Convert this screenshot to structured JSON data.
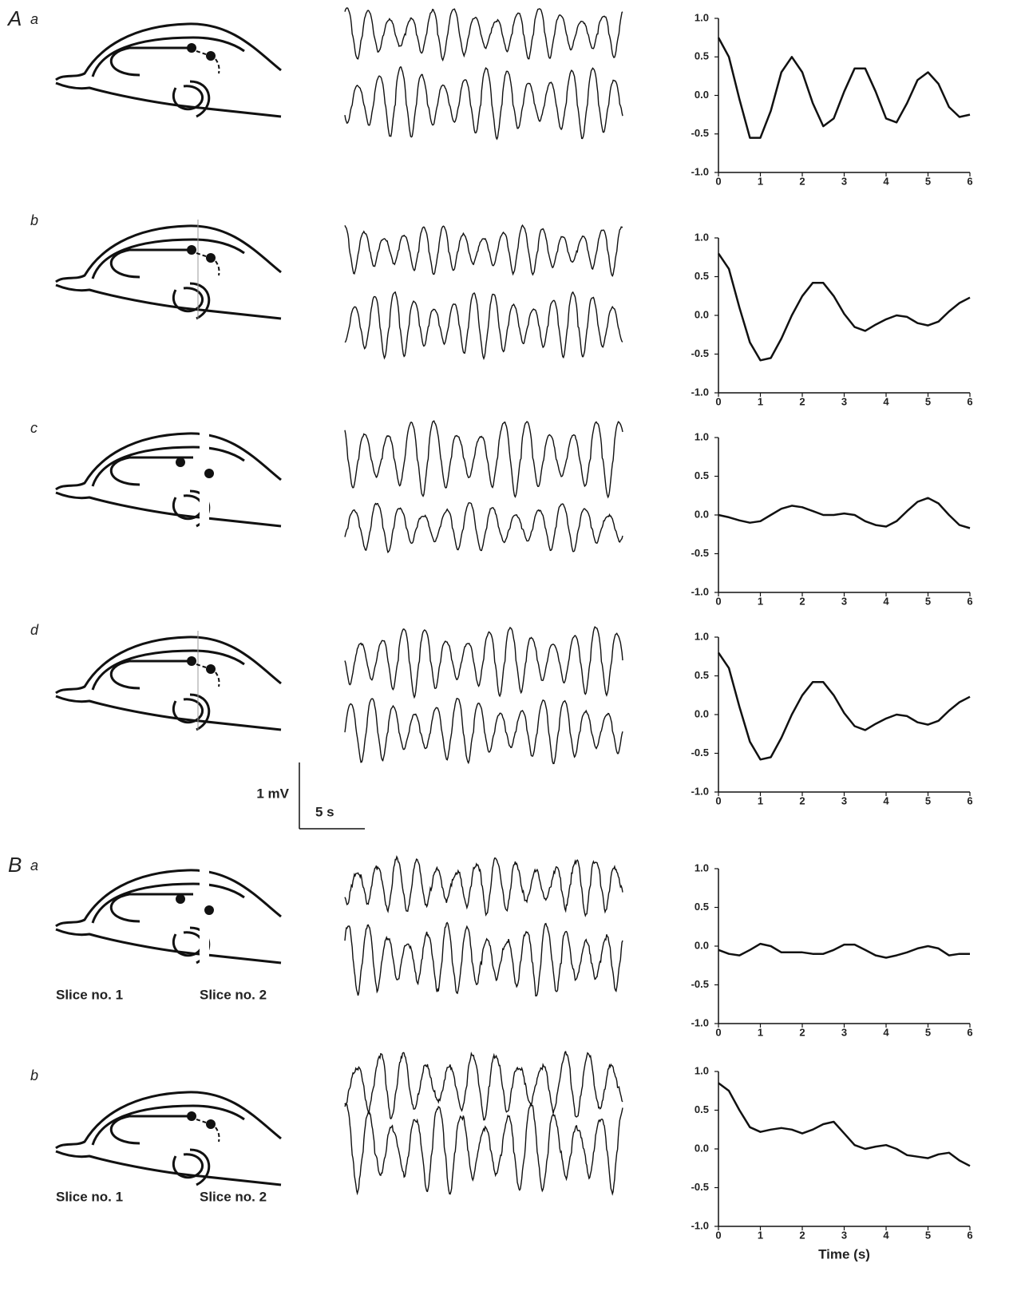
{
  "panels": [
    {
      "group": "A",
      "label": "a"
    },
    {
      "label": "b"
    },
    {
      "label": "c"
    },
    {
      "label": "d"
    },
    {
      "group": "B",
      "label": "a"
    },
    {
      "label": "b"
    }
  ],
  "scale_bar": {
    "voltage": "1 mV",
    "time": "5 s"
  },
  "slice_labels": [
    [
      "Slice no. 1",
      "Slice no. 2"
    ],
    [
      "Slice no. 1",
      "Slice no. 2"
    ]
  ],
  "chart_data": [
    {
      "type": "line",
      "color": "#111111",
      "x": [
        0,
        0.25,
        0.5,
        0.75,
        1,
        1.25,
        1.5,
        1.75,
        2,
        2.25,
        2.5,
        2.75,
        3,
        3.25,
        3.5,
        3.75,
        4,
        4.25,
        4.5,
        4.75,
        5,
        5.25,
        5.5,
        5.75,
        6
      ],
      "values": [
        0.75,
        0.5,
        -0.05,
        -0.55,
        -0.55,
        -0.2,
        0.3,
        0.5,
        0.3,
        -0.1,
        -0.4,
        -0.3,
        0.05,
        0.35,
        0.35,
        0.05,
        -0.3,
        -0.35,
        -0.1,
        0.2,
        0.3,
        0.15,
        -0.15,
        -0.28,
        -0.25
      ],
      "xlim": [
        0,
        6
      ],
      "xticks": [
        0,
        1,
        2,
        3,
        4,
        5,
        6
      ],
      "ylim": [
        -1,
        1
      ],
      "yticks": [
        {
          "value": -1,
          "label": "-1.0"
        },
        {
          "value": -0.5,
          "label": "-0.5"
        },
        {
          "value": 0,
          "label": "0.0"
        },
        {
          "value": 0.5,
          "label": "0.5"
        },
        {
          "value": 1,
          "label": "1.0"
        }
      ]
    },
    {
      "type": "line",
      "color": "#111111",
      "x": [
        0,
        0.25,
        0.5,
        0.75,
        1,
        1.25,
        1.5,
        1.75,
        2,
        2.25,
        2.5,
        2.75,
        3,
        3.25,
        3.5,
        3.75,
        4,
        4.25,
        4.5,
        4.75,
        5,
        5.25,
        5.5,
        5.75,
        6
      ],
      "values": [
        0.8,
        0.6,
        0.1,
        -0.35,
        -0.58,
        -0.55,
        -0.3,
        0.0,
        0.25,
        0.42,
        0.42,
        0.25,
        0.02,
        -0.15,
        -0.2,
        -0.12,
        -0.05,
        0.0,
        -0.02,
        -0.1,
        -0.13,
        -0.08,
        0.05,
        0.16,
        0.23
      ],
      "xlim": [
        0,
        6
      ],
      "xticks": [
        0,
        1,
        2,
        3,
        4,
        5,
        6
      ],
      "ylim": [
        -1,
        1
      ],
      "yticks": [
        {
          "value": -1,
          "label": "-1.0"
        },
        {
          "value": -0.5,
          "label": "-0.5"
        },
        {
          "value": 0,
          "label": "0.0"
        },
        {
          "value": 0.5,
          "label": "0.5"
        },
        {
          "value": 1,
          "label": "1.0"
        }
      ]
    },
    {
      "type": "line",
      "color": "#111111",
      "x": [
        0,
        0.25,
        0.5,
        0.75,
        1,
        1.25,
        1.5,
        1.75,
        2,
        2.25,
        2.5,
        2.75,
        3,
        3.25,
        3.5,
        3.75,
        4,
        4.25,
        4.5,
        4.75,
        5,
        5.25,
        5.5,
        5.75,
        6
      ],
      "values": [
        0,
        -0.03,
        -0.07,
        -0.1,
        -0.08,
        0.0,
        0.08,
        0.12,
        0.1,
        0.05,
        0.0,
        0.0,
        0.02,
        0.0,
        -0.08,
        -0.13,
        -0.15,
        -0.08,
        0.05,
        0.17,
        0.22,
        0.15,
        0.0,
        -0.13,
        -0.17
      ],
      "xlim": [
        0,
        6
      ],
      "xticks": [
        0,
        1,
        2,
        3,
        4,
        5,
        6
      ],
      "ylim": [
        -1,
        1
      ],
      "yticks": [
        {
          "value": -1,
          "label": "-1.0"
        },
        {
          "value": -0.5,
          "label": "-0.5"
        },
        {
          "value": 0,
          "label": "0.0"
        },
        {
          "value": 0.5,
          "label": "0.5"
        },
        {
          "value": 1,
          "label": "1.0"
        }
      ]
    },
    {
      "type": "line",
      "color": "#111111",
      "x": [
        0,
        0.25,
        0.5,
        0.75,
        1,
        1.25,
        1.5,
        1.75,
        2,
        2.25,
        2.5,
        2.75,
        3,
        3.25,
        3.5,
        3.75,
        4,
        4.25,
        4.5,
        4.75,
        5,
        5.25,
        5.5,
        5.75,
        6
      ],
      "values": [
        0.8,
        0.6,
        0.1,
        -0.35,
        -0.58,
        -0.55,
        -0.3,
        0.0,
        0.25,
        0.42,
        0.42,
        0.25,
        0.02,
        -0.15,
        -0.2,
        -0.12,
        -0.05,
        0.0,
        -0.02,
        -0.1,
        -0.13,
        -0.08,
        0.05,
        0.16,
        0.23
      ],
      "xlim": [
        0,
        6
      ],
      "xticks": [
        0,
        1,
        2,
        3,
        4,
        5,
        6
      ],
      "ylim": [
        -1,
        1
      ],
      "yticks": [
        {
          "value": -1,
          "label": "-1.0"
        },
        {
          "value": -0.5,
          "label": "-0.5"
        },
        {
          "value": 0,
          "label": "0.0"
        },
        {
          "value": 0.5,
          "label": "0.5"
        },
        {
          "value": 1,
          "label": "1.0"
        }
      ]
    },
    {
      "type": "line",
      "color": "#111111",
      "x": [
        0,
        0.25,
        0.5,
        0.75,
        1,
        1.25,
        1.5,
        1.75,
        2,
        2.25,
        2.5,
        2.75,
        3,
        3.25,
        3.5,
        3.75,
        4,
        4.25,
        4.5,
        4.75,
        5,
        5.25,
        5.5,
        5.75,
        6
      ],
      "values": [
        -0.05,
        -0.1,
        -0.12,
        -0.05,
        0.03,
        0.0,
        -0.08,
        -0.08,
        -0.08,
        -0.1,
        -0.1,
        -0.05,
        0.02,
        0.02,
        -0.05,
        -0.12,
        -0.15,
        -0.12,
        -0.08,
        -0.03,
        0.0,
        -0.03,
        -0.12,
        -0.1,
        -0.1
      ],
      "xlim": [
        0,
        6
      ],
      "xticks": [
        0,
        1,
        2,
        3,
        4,
        5,
        6
      ],
      "ylim": [
        -1,
        1
      ],
      "yticks": [
        {
          "value": -1,
          "label": "-1.0"
        },
        {
          "value": -0.5,
          "label": "-0.5"
        },
        {
          "value": 0,
          "label": "0.0"
        },
        {
          "value": 0.5,
          "label": "0.5"
        },
        {
          "value": 1,
          "label": "1.0"
        }
      ]
    },
    {
      "type": "line",
      "color": "#111111",
      "x": [
        0,
        0.25,
        0.5,
        0.75,
        1,
        1.25,
        1.5,
        1.75,
        2,
        2.25,
        2.5,
        2.75,
        3,
        3.25,
        3.5,
        3.75,
        4,
        4.25,
        4.5,
        4.75,
        5,
        5.25,
        5.5,
        5.75,
        6
      ],
      "values": [
        0.85,
        0.75,
        0.5,
        0.28,
        0.22,
        0.25,
        0.27,
        0.25,
        0.2,
        0.25,
        0.32,
        0.35,
        0.2,
        0.05,
        0.0,
        0.03,
        0.05,
        0.0,
        -0.08,
        -0.1,
        -0.12,
        -0.07,
        -0.05,
        -0.15,
        -0.22
      ],
      "xlim": [
        0,
        6
      ],
      "xticks": [
        0,
        1,
        2,
        3,
        4,
        5,
        6
      ],
      "ylim": [
        -1,
        1
      ],
      "xlabel": "Time (s)",
      "yticks": [
        {
          "value": -1,
          "label": "-1.0"
        },
        {
          "value": -0.5,
          "label": "-0.5"
        },
        {
          "value": 0,
          "label": "0.0"
        },
        {
          "value": 0.5,
          "label": "0.5"
        },
        {
          "value": 1,
          "label": "1.0"
        }
      ]
    }
  ]
}
